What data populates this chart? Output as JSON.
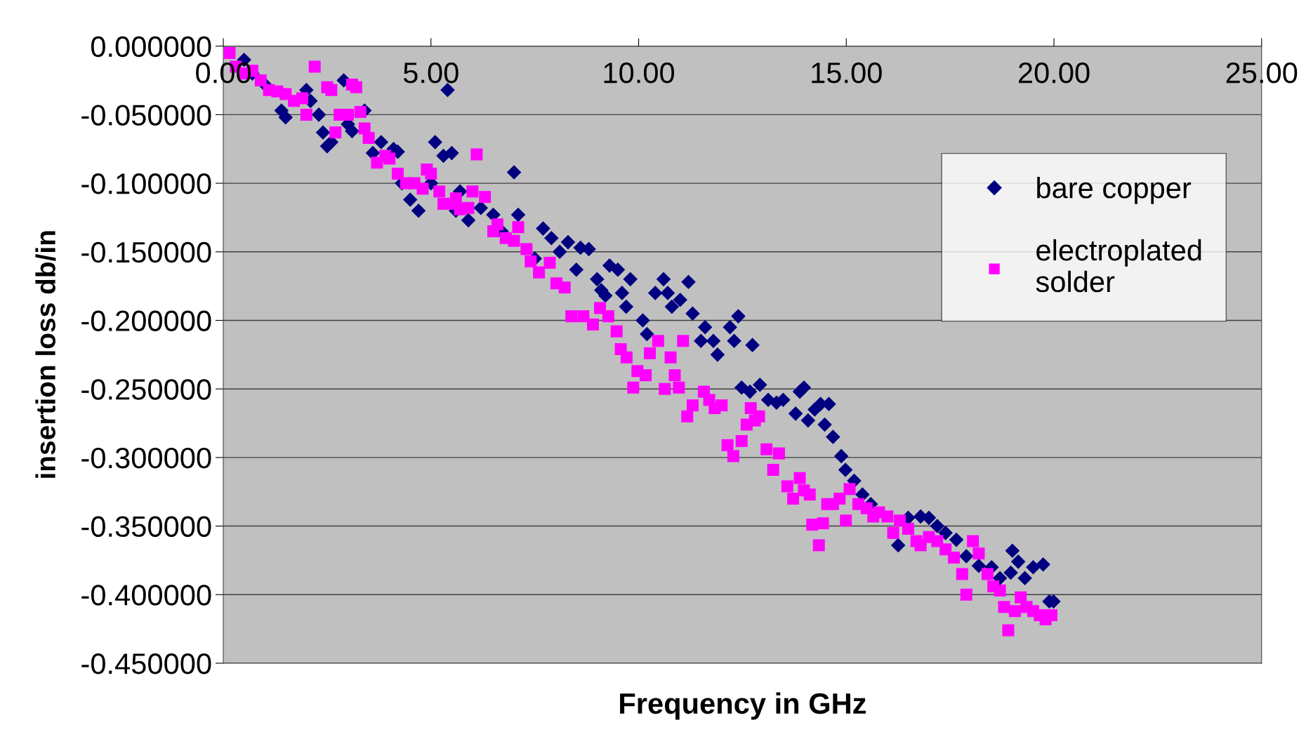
{
  "chart_data": {
    "type": "scatter",
    "xlabel": "Frequency in GHz",
    "ylabel": "insertion loss db/in",
    "xlim": [
      0,
      25
    ],
    "ylim": [
      -0.45,
      0
    ],
    "xticks": [
      {
        "value": 0,
        "label": "0.00"
      },
      {
        "value": 5,
        "label": "5.00"
      },
      {
        "value": 10,
        "label": "10.00"
      },
      {
        "value": 15,
        "label": "15.00"
      },
      {
        "value": 20,
        "label": "20.00"
      },
      {
        "value": 25,
        "label": "25.00"
      }
    ],
    "yticks": [
      {
        "value": 0,
        "label": "0.000000"
      },
      {
        "value": -0.05,
        "label": "-0.050000"
      },
      {
        "value": -0.1,
        "label": "-0.100000"
      },
      {
        "value": -0.15,
        "label": "-0.150000"
      },
      {
        "value": -0.2,
        "label": "-0.200000"
      },
      {
        "value": -0.25,
        "label": "-0.250000"
      },
      {
        "value": -0.3,
        "label": "-0.300000"
      },
      {
        "value": -0.35,
        "label": "-0.350000"
      },
      {
        "value": -0.4,
        "label": "-0.400000"
      },
      {
        "value": -0.45,
        "label": "-0.450000"
      }
    ],
    "grid": "y",
    "legend": "right",
    "series": [
      {
        "name": "bare copper",
        "color": "#000080",
        "marker": "diamond",
        "x": [
          0.5,
          0.7,
          1.0,
          1.4,
          1.5,
          2.0,
          2.1,
          2.3,
          2.4,
          2.5,
          2.6,
          2.9,
          3.0,
          3.1,
          3.4,
          3.6,
          3.8,
          4.1,
          4.2,
          4.3,
          4.5,
          4.7,
          5.0,
          5.1,
          5.3,
          5.5,
          5.4,
          5.6,
          5.7,
          5.9,
          6.2,
          6.5,
          6.7,
          7.0,
          7.1,
          7.5,
          7.7,
          7.9,
          8.1,
          8.3,
          8.5,
          8.6,
          8.8,
          9.0,
          9.1,
          9.2,
          9.3,
          9.5,
          9.6,
          9.8,
          9.7,
          10.1,
          10.2,
          10.4,
          10.6,
          10.7,
          10.8,
          11.0,
          11.2,
          11.3,
          11.5,
          11.6,
          11.8,
          11.9,
          12.2,
          12.3,
          12.4,
          12.74,
          12.48,
          12.68,
          12.92,
          13.12,
          13.32,
          13.48,
          13.78,
          13.88,
          13.98,
          14.08,
          14.24,
          14.38,
          14.48,
          14.58,
          14.68,
          14.88,
          14.98,
          15.19,
          15.39,
          15.59,
          16.25,
          16.49,
          16.79,
          16.99,
          17.19,
          17.39,
          17.65,
          17.89,
          18.19,
          18.5,
          18.7,
          18.96,
          19.0,
          19.14,
          19.3,
          19.5,
          19.74,
          19.89,
          19.99
        ],
        "values": [
          -0.01,
          -0.02,
          -0.028,
          -0.047,
          -0.052,
          -0.032,
          -0.04,
          -0.05,
          -0.063,
          -0.073,
          -0.07,
          -0.025,
          -0.057,
          -0.062,
          -0.047,
          -0.078,
          -0.07,
          -0.075,
          -0.077,
          -0.1,
          -0.112,
          -0.12,
          -0.1,
          -0.07,
          -0.08,
          -0.078,
          -0.032,
          -0.12,
          -0.106,
          -0.127,
          -0.118,
          -0.123,
          -0.135,
          -0.092,
          -0.123,
          -0.155,
          -0.133,
          -0.14,
          -0.15,
          -0.143,
          -0.163,
          -0.147,
          -0.148,
          -0.17,
          -0.178,
          -0.182,
          -0.16,
          -0.163,
          -0.18,
          -0.17,
          -0.19,
          -0.2,
          -0.21,
          -0.18,
          -0.17,
          -0.18,
          -0.19,
          -0.185,
          -0.172,
          -0.195,
          -0.215,
          -0.205,
          -0.215,
          -0.225,
          -0.205,
          -0.215,
          -0.197,
          -0.218,
          -0.249,
          -0.252,
          -0.247,
          -0.258,
          -0.26,
          -0.258,
          -0.268,
          -0.252,
          -0.249,
          -0.273,
          -0.265,
          -0.261,
          -0.276,
          -0.261,
          -0.285,
          -0.299,
          -0.309,
          -0.317,
          -0.327,
          -0.334,
          -0.364,
          -0.344,
          -0.343,
          -0.344,
          -0.35,
          -0.355,
          -0.36,
          -0.372,
          -0.379,
          -0.38,
          -0.388,
          -0.384,
          -0.368,
          -0.376,
          -0.388,
          -0.38,
          -0.378,
          -0.405,
          -0.405
        ]
      },
      {
        "name": "electroplated\nsolder",
        "color": "#ff00ff",
        "marker": "square",
        "x": [
          0.15,
          0.3,
          0.5,
          0.7,
          0.9,
          1.1,
          1.3,
          1.5,
          1.7,
          1.9,
          2.0,
          2.2,
          2.5,
          2.6,
          2.8,
          2.7,
          3.0,
          3.1,
          3.2,
          3.3,
          3.4,
          3.5,
          3.7,
          3.9,
          4.0,
          4.2,
          4.4,
          4.6,
          4.8,
          4.9,
          5.0,
          5.2,
          5.3,
          5.5,
          5.6,
          5.7,
          5.9,
          6.0,
          6.1,
          6.3,
          6.5,
          6.6,
          6.8,
          7.0,
          7.1,
          7.3,
          7.4,
          7.6,
          7.86,
          8.02,
          8.22,
          8.38,
          8.67,
          8.9,
          9.07,
          9.27,
          9.47,
          9.57,
          9.71,
          9.87,
          9.97,
          10.17,
          10.27,
          10.47,
          10.63,
          10.77,
          10.87,
          10.97,
          11.07,
          11.17,
          11.3,
          11.57,
          11.7,
          11.83,
          12.0,
          12.14,
          12.28,
          12.48,
          12.6,
          12.7,
          12.8,
          12.9,
          13.08,
          13.24,
          13.38,
          13.58,
          13.72,
          13.88,
          13.98,
          14.12,
          14.18,
          14.34,
          14.44,
          14.54,
          14.68,
          14.84,
          14.99,
          15.08,
          15.29,
          15.49,
          15.65,
          15.79,
          15.99,
          16.13,
          16.29,
          16.49,
          16.69,
          16.79,
          16.99,
          17.19,
          17.39,
          17.59,
          17.79,
          17.89,
          18.05,
          18.19,
          18.4,
          18.54,
          18.7,
          18.8,
          18.9,
          19.06,
          19.2,
          19.34,
          19.5,
          19.66,
          19.8,
          19.94
        ],
        "values": [
          -0.005,
          -0.015,
          -0.02,
          -0.018,
          -0.025,
          -0.032,
          -0.033,
          -0.035,
          -0.04,
          -0.038,
          -0.05,
          -0.015,
          -0.03,
          -0.032,
          -0.05,
          -0.063,
          -0.05,
          -0.028,
          -0.03,
          -0.048,
          -0.06,
          -0.067,
          -0.085,
          -0.08,
          -0.082,
          -0.093,
          -0.1,
          -0.1,
          -0.104,
          -0.09,
          -0.093,
          -0.106,
          -0.115,
          -0.115,
          -0.111,
          -0.119,
          -0.118,
          -0.106,
          -0.079,
          -0.11,
          -0.135,
          -0.13,
          -0.14,
          -0.142,
          -0.132,
          -0.148,
          -0.157,
          -0.165,
          -0.158,
          -0.173,
          -0.176,
          -0.197,
          -0.197,
          -0.203,
          -0.191,
          -0.197,
          -0.208,
          -0.221,
          -0.227,
          -0.249,
          -0.237,
          -0.24,
          -0.224,
          -0.215,
          -0.25,
          -0.227,
          -0.24,
          -0.249,
          -0.215,
          -0.27,
          -0.262,
          -0.252,
          -0.258,
          -0.264,
          -0.262,
          -0.291,
          -0.299,
          -0.288,
          -0.276,
          -0.264,
          -0.273,
          -0.27,
          -0.294,
          -0.309,
          -0.297,
          -0.321,
          -0.33,
          -0.315,
          -0.324,
          -0.327,
          -0.349,
          -0.364,
          -0.348,
          -0.334,
          -0.334,
          -0.33,
          -0.346,
          -0.323,
          -0.334,
          -0.337,
          -0.343,
          -0.34,
          -0.343,
          -0.355,
          -0.346,
          -0.352,
          -0.361,
          -0.364,
          -0.358,
          -0.361,
          -0.367,
          -0.373,
          -0.385,
          -0.4,
          -0.361,
          -0.37,
          -0.385,
          -0.394,
          -0.397,
          -0.409,
          -0.426,
          -0.412,
          -0.402,
          -0.409,
          -0.412,
          -0.415,
          -0.418,
          -0.415
        ]
      }
    ]
  }
}
